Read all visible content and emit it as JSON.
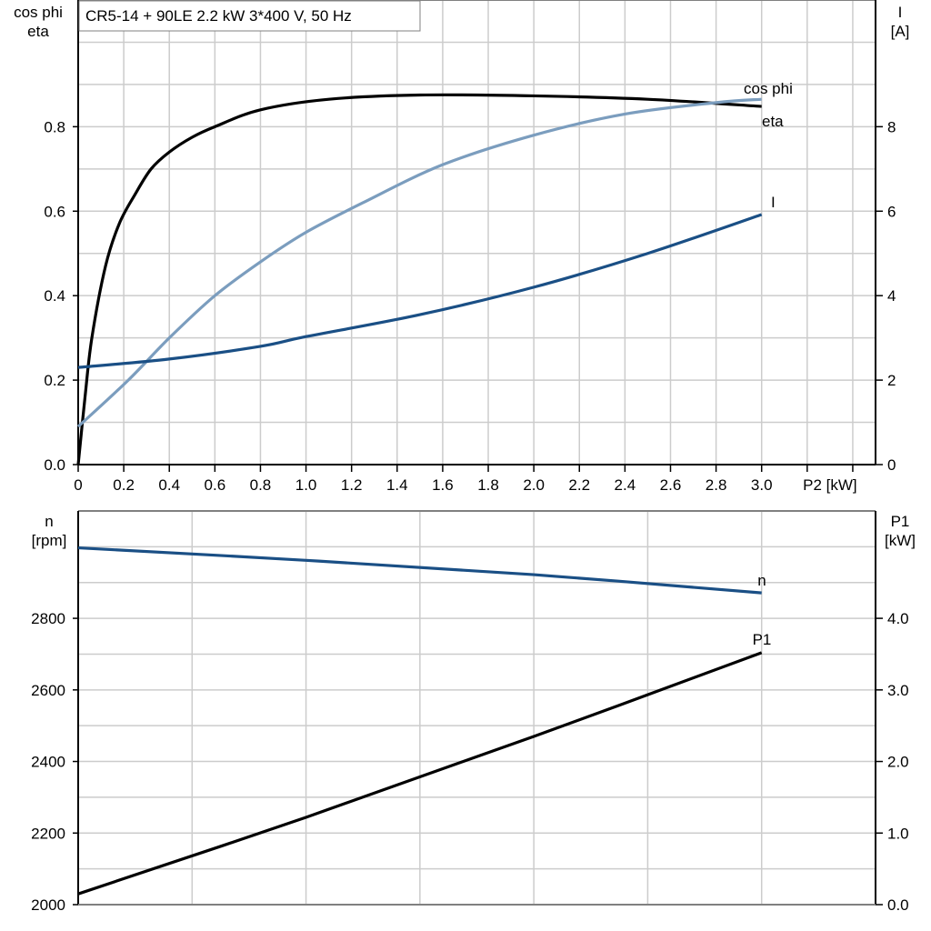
{
  "chart_data": [
    {
      "type": "line",
      "title": "CR5-14 + 90LE   2.2 kW   3*400 V, 50 Hz",
      "xlabel": "P2 [kW]",
      "ylabel_lines": [
        "cos phi",
        "eta"
      ],
      "y2label_lines": [
        "I",
        "[A]"
      ],
      "xlim": [
        0,
        3.5
      ],
      "ylim": [
        0,
        1.1
      ],
      "y2lim": [
        0,
        11
      ],
      "xticks": [
        0,
        0.2,
        0.4,
        0.6,
        0.8,
        1.0,
        1.2,
        1.4,
        1.6,
        1.8,
        2.0,
        2.2,
        2.4,
        2.6,
        2.8,
        3.0
      ],
      "xtick_labels": [
        "0",
        "0.2",
        "0.4",
        "0.6",
        "0.8",
        "1.0",
        "1.2",
        "1.4",
        "1.6",
        "1.8",
        "2.0",
        "2.2",
        "2.4",
        "2.6",
        "2.8",
        "3.0"
      ],
      "yticks": [
        0,
        0.2,
        0.4,
        0.6,
        0.8
      ],
      "ytick_labels": [
        "0.0",
        "0.2",
        "0.4",
        "0.6",
        "0.8"
      ],
      "y2ticks": [
        0,
        2,
        4,
        6,
        8
      ],
      "y2tick_labels": [
        "0",
        "2",
        "4",
        "6",
        "8"
      ],
      "grid": true,
      "series": [
        {
          "name": "eta",
          "axis": "left",
          "color": "#000000",
          "x": [
            0,
            0.03,
            0.06,
            0.12,
            0.18,
            0.25,
            0.32,
            0.4,
            0.5,
            0.6,
            0.8,
            1.1,
            1.5,
            2.0,
            2.5,
            3.0
          ],
          "y": [
            0,
            0.16,
            0.3,
            0.47,
            0.57,
            0.64,
            0.7,
            0.74,
            0.775,
            0.8,
            0.84,
            0.865,
            0.875,
            0.873,
            0.865,
            0.848
          ]
        },
        {
          "name": "cos phi",
          "axis": "left",
          "color": "#7b9dbe",
          "x": [
            0,
            0.22,
            0.4,
            0.6,
            0.8,
            1.0,
            1.25,
            1.6,
            2.0,
            2.4,
            2.8,
            3.0
          ],
          "y": [
            0.09,
            0.2,
            0.3,
            0.4,
            0.48,
            0.55,
            0.62,
            0.71,
            0.78,
            0.83,
            0.857,
            0.865
          ]
        },
        {
          "name": "I",
          "axis": "right",
          "color": "#1a4f85",
          "x": [
            0,
            0.4,
            0.8,
            1.0,
            1.5,
            2.0,
            2.5,
            3.0
          ],
          "y": [
            2.3,
            2.5,
            2.8,
            3.03,
            3.55,
            4.2,
            5.0,
            5.92
          ]
        }
      ]
    },
    {
      "type": "line",
      "xlim": [
        0,
        3.5
      ],
      "ylabel_lines": [
        "n",
        "[rpm]"
      ],
      "y2label_lines": [
        "P1",
        "[kW]"
      ],
      "ylim": [
        2000,
        3100
      ],
      "y2lim": [
        0,
        5.5
      ],
      "yticks": [
        2000,
        2200,
        2400,
        2600,
        2800
      ],
      "ytick_labels": [
        "2000",
        "2200",
        "2400",
        "2600",
        "2800"
      ],
      "y2ticks": [
        0,
        1,
        2,
        3,
        4
      ],
      "y2tick_labels": [
        "0.0",
        "1.0",
        "2.0",
        "3.0",
        "4.0"
      ],
      "grid": true,
      "series": [
        {
          "name": "n",
          "axis": "left",
          "color": "#1a4f85",
          "x": [
            0,
            1.0,
            2.0,
            3.0
          ],
          "y": [
            2997,
            2962,
            2922,
            2871
          ]
        },
        {
          "name": "P1",
          "axis": "right",
          "color": "#000000",
          "x": [
            0,
            1.0,
            2.0,
            3.0
          ],
          "y": [
            0.15,
            1.22,
            2.35,
            3.52
          ]
        }
      ]
    }
  ]
}
